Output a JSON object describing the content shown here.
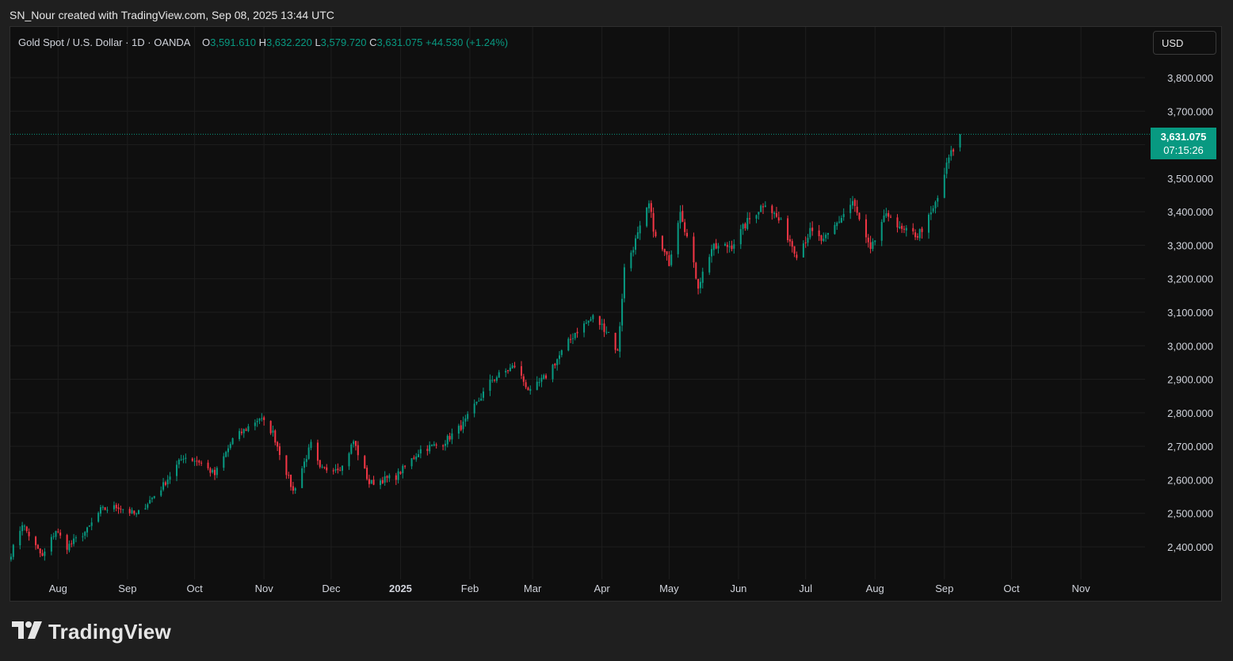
{
  "caption": "SN_Nour created with TradingView.com, Sep 08, 2025 13:44 UTC",
  "legend": {
    "symbol": "Gold Spot / U.S. Dollar · 1D · OANDA",
    "o_label": "O",
    "o_value": "3,591.610",
    "h_label": "H",
    "h_value": "3,632.220",
    "l_label": "L",
    "l_value": "3,579.720",
    "c_label": "C",
    "c_value": "3,631.075",
    "change": "+44.530 (+1.24%)"
  },
  "currency": "USD",
  "price_tag": {
    "price": "3,631.075",
    "countdown": "07:15:26"
  },
  "brand": {
    "name": "TradingView",
    "icon": "tradingview-logo-icon"
  },
  "colors": {
    "up": "#089981",
    "down": "#f23645",
    "background": "#0f0f0f",
    "grid": "#1e1e1e",
    "axis_text": "#d1d4dc"
  },
  "chart_data": {
    "type": "candlestick",
    "title": "Gold Spot / U.S. Dollar · 1D · OANDA",
    "ylim": [
      2340,
      3900
    ],
    "y_ticks": [
      2400,
      2500,
      2600,
      2700,
      2800,
      2900,
      3000,
      3100,
      3200,
      3300,
      3400,
      3500,
      3600,
      3700,
      3800
    ],
    "y_tick_labels": [
      "2,400.000",
      "2,500.000",
      "2,600.000",
      "2,700.000",
      "2,800.000",
      "2,900.000",
      "3,000.000",
      "3,100.000",
      "3,200.000",
      "3,300.000",
      "3,400.000",
      "3,500.000",
      "",
      "3,700.000",
      "3,800.000"
    ],
    "x_labels": [
      {
        "label": "Aug",
        "date": "2024-08-01"
      },
      {
        "label": "Sep",
        "date": "2024-09-01"
      },
      {
        "label": "Oct",
        "date": "2024-10-01"
      },
      {
        "label": "Nov",
        "date": "2024-11-01"
      },
      {
        "label": "Dec",
        "date": "2024-12-01"
      },
      {
        "label": "2025",
        "date": "2025-01-01",
        "bold": true
      },
      {
        "label": "Feb",
        "date": "2025-02-01"
      },
      {
        "label": "Mar",
        "date": "2025-03-01"
      },
      {
        "label": "Apr",
        "date": "2025-04-01"
      },
      {
        "label": "May",
        "date": "2025-05-01"
      },
      {
        "label": "Jun",
        "date": "2025-06-01"
      },
      {
        "label": "Jul",
        "date": "2025-07-01"
      },
      {
        "label": "Aug",
        "date": "2025-08-01"
      },
      {
        "label": "Sep",
        "date": "2025-09-01"
      },
      {
        "label": "Oct",
        "date": "2025-10-01"
      },
      {
        "label": "Nov",
        "date": "2025-11-01"
      }
    ],
    "x_range": [
      "2024-07-11",
      "2025-11-30"
    ],
    "last_price": 3631.075,
    "anchors": [
      [
        "2024-07-11",
        2380
      ],
      [
        "2024-07-16",
        2470
      ],
      [
        "2024-07-22",
        2400
      ],
      [
        "2024-07-25",
        2370
      ],
      [
        "2024-07-31",
        2450
      ],
      [
        "2024-08-05",
        2400
      ],
      [
        "2024-08-14",
        2450
      ],
      [
        "2024-08-20",
        2510
      ],
      [
        "2024-08-28",
        2520
      ],
      [
        "2024-09-05",
        2495
      ],
      [
        "2024-09-16",
        2575
      ],
      [
        "2024-09-26",
        2670
      ],
      [
        "2024-10-03",
        2655
      ],
      [
        "2024-10-10",
        2615
      ],
      [
        "2024-10-18",
        2720
      ],
      [
        "2024-10-30",
        2785
      ],
      [
        "2024-11-05",
        2740
      ],
      [
        "2024-11-14",
        2565
      ],
      [
        "2024-11-22",
        2705
      ],
      [
        "2024-11-26",
        2630
      ],
      [
        "2024-12-06",
        2640
      ],
      [
        "2024-12-11",
        2715
      ],
      [
        "2024-12-18",
        2590
      ],
      [
        "2024-12-30",
        2610
      ],
      [
        "2025-01-10",
        2690
      ],
      [
        "2025-01-20",
        2710
      ],
      [
        "2025-01-29",
        2765
      ],
      [
        "2025-02-11",
        2900
      ],
      [
        "2025-02-21",
        2940
      ],
      [
        "2025-02-28",
        2860
      ],
      [
        "2025-03-07",
        2910
      ],
      [
        "2025-03-20",
        3040
      ],
      [
        "2025-03-28",
        3085
      ],
      [
        "2025-04-04",
        3040
      ],
      [
        "2025-04-08",
        2980
      ],
      [
        "2025-04-11",
        3230
      ],
      [
        "2025-04-17",
        3330
      ],
      [
        "2025-04-22",
        3420
      ],
      [
        "2025-04-25",
        3320
      ],
      [
        "2025-05-01",
        3250
      ],
      [
        "2025-05-06",
        3410
      ],
      [
        "2025-05-14",
        3180
      ],
      [
        "2025-05-20",
        3290
      ],
      [
        "2025-05-29",
        3300
      ],
      [
        "2025-06-05",
        3370
      ],
      [
        "2025-06-13",
        3430
      ],
      [
        "2025-06-20",
        3365
      ],
      [
        "2025-06-27",
        3275
      ],
      [
        "2025-07-03",
        3340
      ],
      [
        "2025-07-09",
        3310
      ],
      [
        "2025-07-22",
        3430
      ],
      [
        "2025-07-30",
        3280
      ],
      [
        "2025-08-04",
        3370
      ],
      [
        "2025-08-08",
        3395
      ],
      [
        "2025-08-12",
        3345
      ],
      [
        "2025-08-20",
        3330
      ],
      [
        "2025-08-26",
        3390
      ],
      [
        "2025-08-29",
        3440
      ],
      [
        "2025-09-03",
        3560
      ],
      [
        "2025-09-05",
        3586
      ],
      [
        "2025-09-08",
        3631.075
      ]
    ]
  }
}
